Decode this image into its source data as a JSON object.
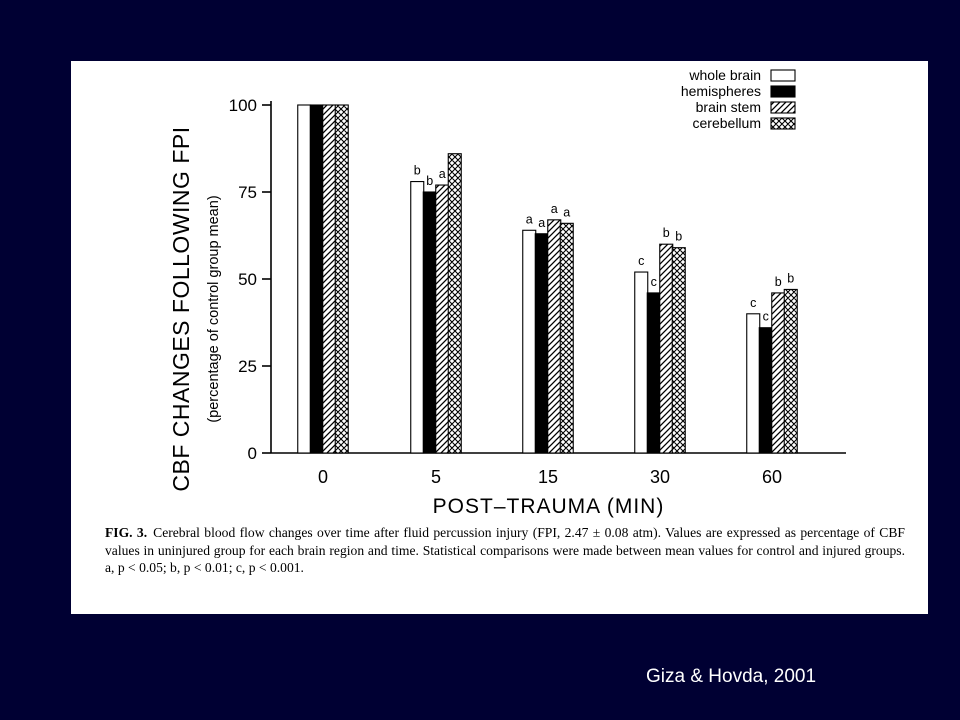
{
  "credit": "Giza & Hovda, 2001",
  "caption": {
    "label": "FIG. 3.",
    "text": "Cerebral blood flow changes over time after fluid percussion injury (FPI, 2.47 ± 0.08 atm). Values are expressed as percentage of CBF values in uninjured group for each brain region and time. Statistical comparisons were made between mean values for control and injured groups. a, p < 0.05; b, p < 0.01; c, p < 0.001."
  },
  "chart_data": {
    "type": "bar",
    "title": "",
    "ylabel": "CBF CHANGES FOLLOWING FPI",
    "ylabel_sub": "(percentage of control group mean)",
    "xlabel": "POST–TRAUMA (MIN)",
    "categories": [
      "0",
      "5",
      "15",
      "30",
      "60"
    ],
    "ylim": [
      0,
      100
    ],
    "yticks": [
      0,
      25,
      50,
      75,
      100
    ],
    "legend_position": "top-right",
    "series": [
      {
        "name": "whole brain",
        "fill": "open",
        "values": [
          100,
          78,
          64,
          52,
          40
        ],
        "significance": [
          "",
          "b",
          "a",
          "c",
          "c"
        ]
      },
      {
        "name": "hemispheres",
        "fill": "solid",
        "values": [
          100,
          75,
          63,
          46,
          36
        ],
        "significance": [
          "",
          "b",
          "a",
          "c",
          "c"
        ]
      },
      {
        "name": "brain stem",
        "fill": "diagonal",
        "values": [
          100,
          77,
          67,
          60,
          46
        ],
        "significance": [
          "",
          "a",
          "a",
          "b",
          "b"
        ]
      },
      {
        "name": "cerebellum",
        "fill": "crosshatch",
        "values": [
          100,
          86,
          66,
          59,
          47
        ],
        "significance": [
          "",
          "",
          "a",
          "b",
          "b"
        ]
      }
    ]
  },
  "colors": {
    "background": "#000033",
    "panel": "#ffffff",
    "ink": "#000000",
    "credit_text": "#ffffff"
  }
}
